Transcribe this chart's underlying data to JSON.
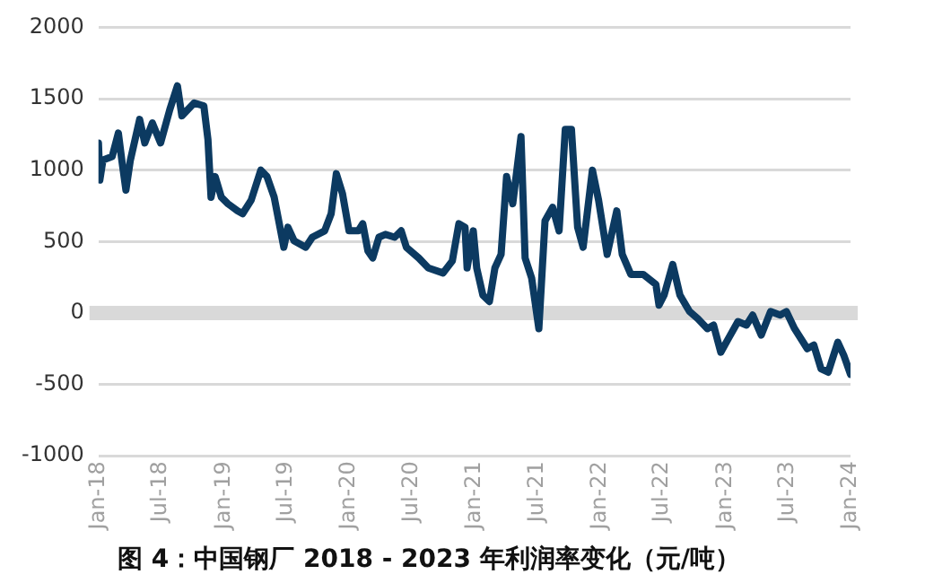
{
  "chart_data": {
    "type": "line",
    "title": "图 4：中国钢厂 2018 - 2023 年利润率变化（元/吨）",
    "x": [
      "2018-01-01",
      "2018-01-05",
      "2018-01-14",
      "2018-02-10",
      "2018-02-28",
      "2018-03-10",
      "2018-03-22",
      "2018-04-04",
      "2018-05-01",
      "2018-05-16",
      "2018-06-07",
      "2018-07-01",
      "2018-07-28",
      "2018-08-19",
      "2018-09-01",
      "2018-10-07",
      "2018-11-04",
      "2018-11-16",
      "2018-11-25",
      "2018-12-07",
      "2018-12-25",
      "2019-01-13",
      "2019-02-10",
      "2019-02-25",
      "2019-03-22",
      "2019-04-19",
      "2019-05-07",
      "2019-05-28",
      "2019-06-25",
      "2019-07-07",
      "2019-07-25",
      "2019-08-28",
      "2019-09-16",
      "2019-10-22",
      "2019-11-10",
      "2019-11-25",
      "2019-12-13",
      "2020-01-01",
      "2020-01-28",
      "2020-02-10",
      "2020-02-25",
      "2020-03-10",
      "2020-03-28",
      "2020-04-16",
      "2020-05-13",
      "2020-06-01",
      "2020-06-16",
      "2020-07-22",
      "2020-08-19",
      "2020-10-01",
      "2020-10-28",
      "2020-11-16",
      "2020-12-04",
      "2020-12-10",
      "2020-12-28",
      "2021-01-07",
      "2021-01-25",
      "2021-02-13",
      "2021-03-01",
      "2021-03-19",
      "2021-04-04",
      "2021-04-22",
      "2021-05-16",
      "2021-05-28",
      "2021-06-16",
      "2021-07-07",
      "2021-07-25",
      "2021-08-16",
      "2021-09-04",
      "2021-09-22",
      "2021-10-10",
      "2021-10-28",
      "2021-11-13",
      "2021-12-10",
      "2021-12-28",
      "2022-01-22",
      "2022-02-19",
      "2022-03-07",
      "2022-04-01",
      "2022-05-07",
      "2022-06-13",
      "2022-06-22",
      "2022-07-07",
      "2022-08-01",
      "2022-08-22",
      "2022-09-19",
      "2022-10-13",
      "2022-11-10",
      "2022-11-28",
      "2022-12-19",
      "2023-01-10",
      "2023-02-07",
      "2023-03-04",
      "2023-03-22",
      "2023-04-16",
      "2023-05-13",
      "2023-06-10",
      "2023-06-28",
      "2023-07-22",
      "2023-08-28",
      "2023-09-16",
      "2023-10-07",
      "2023-10-28",
      "2023-11-25",
      "2023-12-13",
      "2024-01-01"
    ],
    "series": [
      {
        "color": "#0c3a61",
        "values": [
          1190,
          930,
          1070,
          1095,
          1260,
          1070,
          860,
          1070,
          1355,
          1190,
          1330,
          1190,
          1425,
          1590,
          1380,
          1470,
          1450,
          1215,
          810,
          955,
          810,
          765,
          715,
          695,
          790,
          1000,
          955,
          810,
          460,
          600,
          505,
          460,
          530,
          575,
          695,
          975,
          835,
          575,
          575,
          625,
          435,
          385,
          530,
          550,
          530,
          575,
          460,
          385,
          315,
          280,
          365,
          625,
          600,
          315,
          575,
          315,
          125,
          80,
          315,
          410,
          955,
          765,
          1235,
          385,
          245,
          -110,
          645,
          740,
          575,
          1285,
          1285,
          600,
          460,
          1000,
          790,
          410,
          715,
          410,
          270,
          270,
          200,
          55,
          125,
          340,
          125,
          10,
          -40,
          -110,
          -85,
          -275,
          -180,
          -60,
          -85,
          -15,
          -155,
          10,
          -15,
          10,
          -110,
          -250,
          -225,
          -390,
          -415,
          -205,
          -300,
          -430
        ]
      }
    ],
    "xlim": [
      "2018-01-01",
      "2024-01-01"
    ],
    "xticks": [
      {
        "value": "2018-01-01",
        "label": "Jan-18"
      },
      {
        "value": "2018-07-01",
        "label": "Jul-18"
      },
      {
        "value": "2019-01-01",
        "label": "Jan-19"
      },
      {
        "value": "2019-07-01",
        "label": "Jul-19"
      },
      {
        "value": "2020-01-01",
        "label": "Jan-20"
      },
      {
        "value": "2020-07-01",
        "label": "Jul-20"
      },
      {
        "value": "2021-01-01",
        "label": "Jan-21"
      },
      {
        "value": "2021-07-01",
        "label": "Jul-21"
      },
      {
        "value": "2022-01-01",
        "label": "Jan-22"
      },
      {
        "value": "2022-07-01",
        "label": "Jul-22"
      },
      {
        "value": "2023-01-01",
        "label": "Jan-23"
      },
      {
        "value": "2023-07-01",
        "label": "Jul-23"
      },
      {
        "value": "2024-01-01",
        "label": "Jan-24"
      }
    ],
    "ylim": [
      -1000,
      2000
    ],
    "yticks": [
      -1000,
      -500,
      0,
      500,
      1000,
      1500,
      2000
    ],
    "ref_lines": [
      {
        "axis": "y",
        "value": 0,
        "color": "#d9d9d9"
      }
    ],
    "grid": "y",
    "legend": false,
    "marker": "none",
    "line_style": "solid"
  }
}
